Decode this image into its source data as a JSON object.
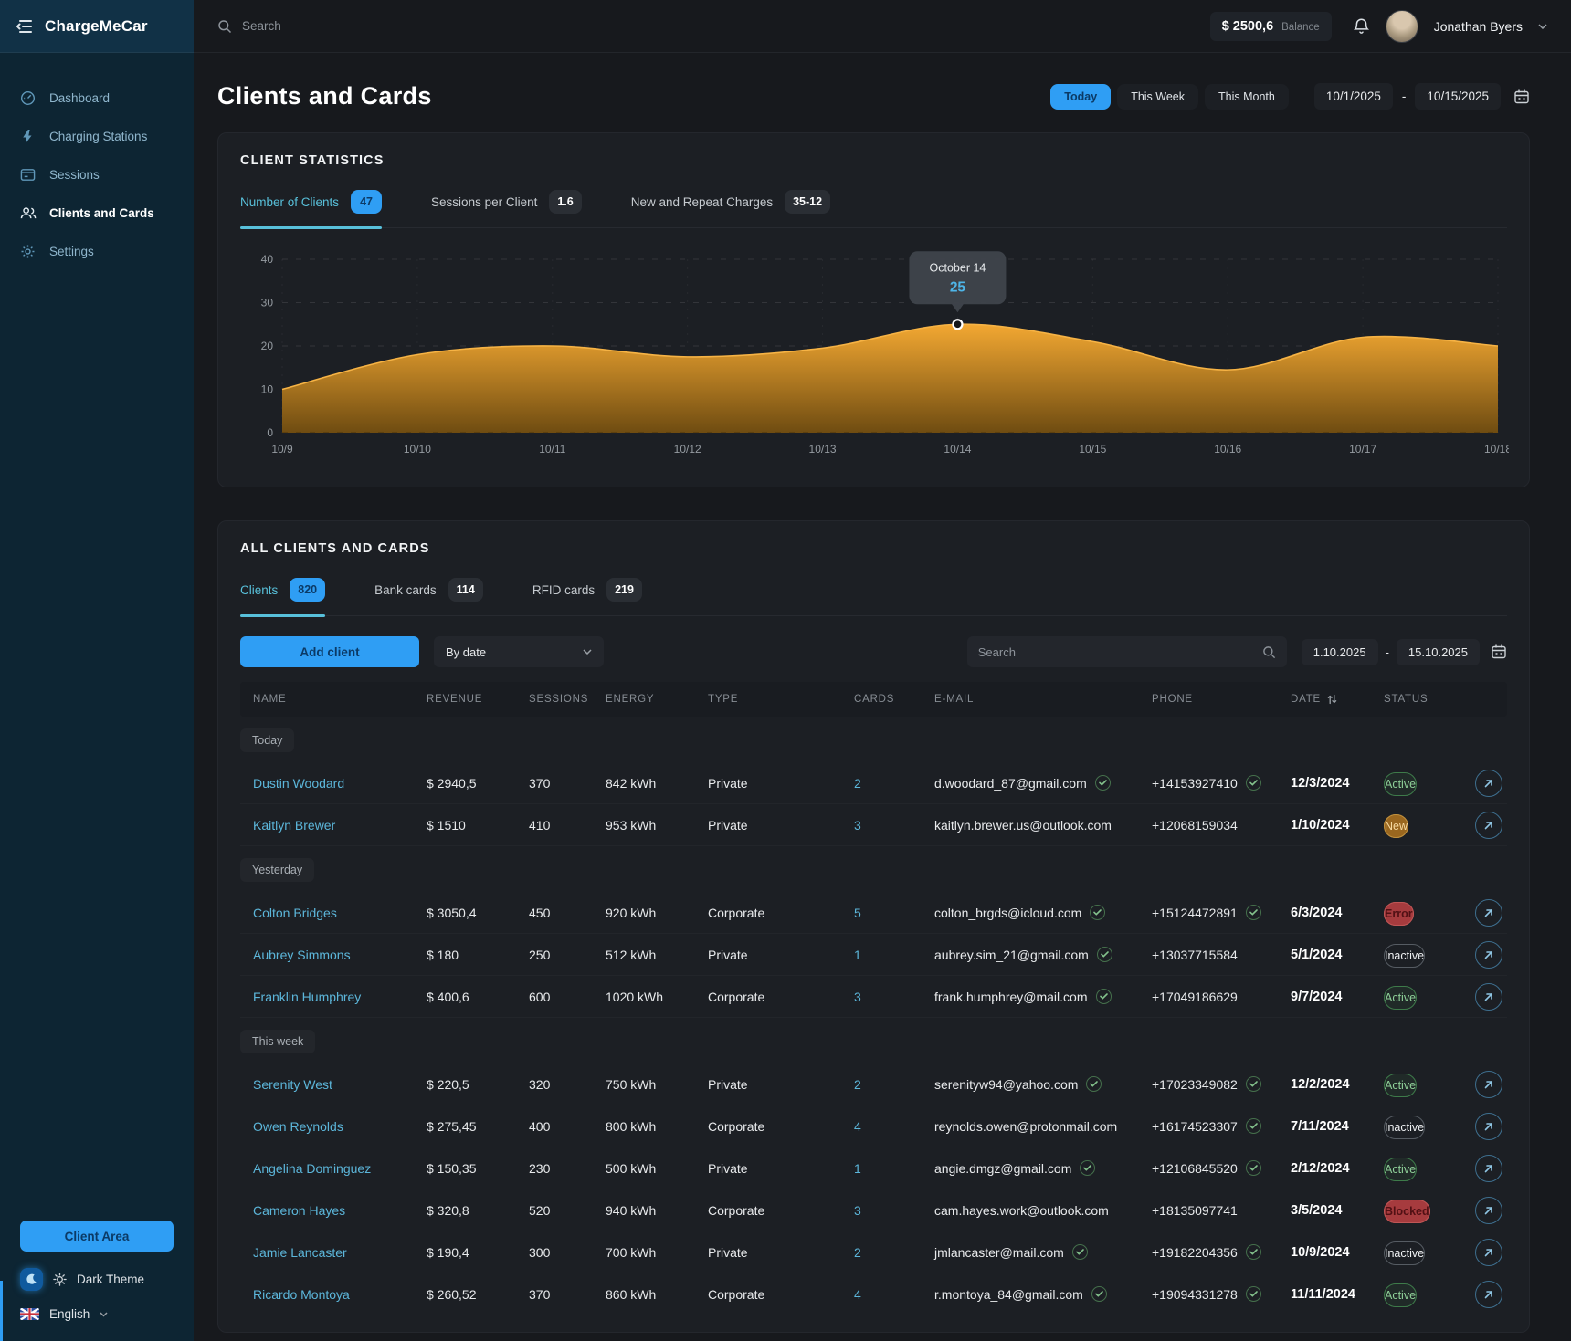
{
  "app": {
    "name": "ChargeMeCar"
  },
  "topbar": {
    "search_placeholder": "Search",
    "balance_value": "$ 2500,6",
    "balance_label": "Balance",
    "user_name": "Jonathan Byers"
  },
  "sidebar": {
    "items": [
      {
        "label": "Dashboard",
        "icon": "dashboard",
        "active": false
      },
      {
        "label": "Charging Stations",
        "icon": "charging",
        "active": false
      },
      {
        "label": "Sessions",
        "icon": "sessions",
        "active": false
      },
      {
        "label": "Clients and Cards",
        "icon": "clients",
        "active": true
      },
      {
        "label": "Settings",
        "icon": "settings",
        "active": false
      }
    ],
    "client_area_label": "Client Area",
    "theme_label": "Dark Theme",
    "language": "English"
  },
  "page": {
    "title": "Clients and Cards",
    "filters": [
      {
        "label": "Today",
        "active": true
      },
      {
        "label": "This Week",
        "active": false
      },
      {
        "label": "This Month",
        "active": false
      }
    ],
    "date_from": "10/1/2025",
    "date_separator": "-",
    "date_to": "10/15/2025"
  },
  "stats": {
    "title": "CLIENT STATISTICS",
    "tabs": [
      {
        "label": "Number of Clients",
        "badge": "47",
        "active": true
      },
      {
        "label": "Sessions per Client",
        "badge": "1.6",
        "active": false
      },
      {
        "label": "New and Repeat Charges",
        "badge": "35-12",
        "active": false
      }
    ]
  },
  "chart_data": {
    "type": "area",
    "title": "Number of Clients",
    "x": [
      "10/9",
      "10/10",
      "10/11",
      "10/12",
      "10/13",
      "10/14",
      "10/15",
      "10/16",
      "10/17",
      "10/18"
    ],
    "values": [
      10,
      18,
      20,
      17.5,
      19.5,
      25,
      21,
      14.5,
      22,
      20
    ],
    "ylim": [
      0,
      40
    ],
    "yticks": [
      0,
      10,
      20,
      30,
      40
    ],
    "grid": "dashed",
    "fill_color": "#e89c27",
    "tooltip": {
      "index": 5,
      "label": "October 14",
      "value": "25"
    }
  },
  "clients": {
    "title": "ALL CLIENTS AND CARDS",
    "tabs": [
      {
        "label": "Clients",
        "badge": "820",
        "active": true
      },
      {
        "label": "Bank cards",
        "badge": "114",
        "active": false
      },
      {
        "label": "RFID cards",
        "badge": "219",
        "active": false
      }
    ],
    "add_button": "Add client",
    "sort_label": "By date",
    "search_placeholder": "Search",
    "date_from": "1.10.2025",
    "date_separator": "-",
    "date_to": "15.10.2025",
    "columns": [
      "NAME",
      "REVENUE",
      "SESSIONS",
      "ENERGY",
      "TYPE",
      "CARDS",
      "E-MAIL",
      "PHONE",
      "DATE",
      "STATUS"
    ],
    "groups": [
      {
        "label": "Today",
        "rows": [
          {
            "name": "Dustin Woodard",
            "revenue": "$ 2940,5",
            "sessions": "370",
            "energy": "842 kWh",
            "type": "Private",
            "cards": "2",
            "email": "d.woodard_87@gmail.com",
            "email_verified": true,
            "phone": "+14153927410",
            "phone_verified": true,
            "date": "12/3/2024",
            "status": "Active",
            "status_type": "active"
          },
          {
            "name": "Kaitlyn Brewer",
            "revenue": "$ 1510",
            "sessions": "410",
            "energy": "953 kWh",
            "type": "Private",
            "cards": "3",
            "email": "kaitlyn.brewer.us@outlook.com",
            "email_verified": false,
            "phone": "+12068159034",
            "phone_verified": false,
            "date": "1/10/2024",
            "status": "New",
            "status_type": "new"
          }
        ]
      },
      {
        "label": "Yesterday",
        "rows": [
          {
            "name": "Colton Bridges",
            "revenue": "$ 3050,4",
            "sessions": "450",
            "energy": "920 kWh",
            "type": "Corporate",
            "cards": "5",
            "email": "colton_brgds@icloud.com",
            "email_verified": true,
            "phone": "+15124472891",
            "phone_verified": true,
            "date": "6/3/2024",
            "status": "Error",
            "status_type": "error"
          },
          {
            "name": "Aubrey Simmons",
            "revenue": "$ 180",
            "sessions": "250",
            "energy": "512 kWh",
            "type": "Private",
            "cards": "1",
            "email": "aubrey.sim_21@gmail.com",
            "email_verified": true,
            "phone": "+13037715584",
            "phone_verified": false,
            "date": "5/1/2024",
            "status": "Inactive",
            "status_type": "inactive"
          },
          {
            "name": "Franklin Humphrey",
            "revenue": "$ 400,6",
            "sessions": "600",
            "energy": "1020 kWh",
            "type": "Corporate",
            "cards": "3",
            "email": "frank.humphrey@mail.com",
            "email_verified": true,
            "phone": "+17049186629",
            "phone_verified": false,
            "date": "9/7/2024",
            "status": "Active",
            "status_type": "active"
          }
        ]
      },
      {
        "label": "This week",
        "rows": [
          {
            "name": "Serenity West",
            "revenue": "$ 220,5",
            "sessions": "320",
            "energy": "750 kWh",
            "type": "Private",
            "cards": "2",
            "email": "serenityw94@yahoo.com",
            "email_verified": true,
            "phone": "+17023349082",
            "phone_verified": true,
            "date": "12/2/2024",
            "status": "Active",
            "status_type": "active"
          },
          {
            "name": "Owen Reynolds",
            "revenue": "$ 275,45",
            "sessions": "400",
            "energy": "800 kWh",
            "type": "Corporate",
            "cards": "4",
            "email": "reynolds.owen@protonmail.com",
            "email_verified": false,
            "phone": "+16174523307",
            "phone_verified": true,
            "date": "7/11/2024",
            "status": "Inactive",
            "status_type": "inactive"
          },
          {
            "name": "Angelina Dominguez",
            "revenue": "$ 150,35",
            "sessions": "230",
            "energy": "500 kWh",
            "type": "Private",
            "cards": "1",
            "email": "angie.dmgz@gmail.com",
            "email_verified": true,
            "phone": "+12106845520",
            "phone_verified": true,
            "date": "2/12/2024",
            "status": "Active",
            "status_type": "active"
          },
          {
            "name": "Cameron Hayes",
            "revenue": "$ 320,8",
            "sessions": "520",
            "energy": "940 kWh",
            "type": "Corporate",
            "cards": "3",
            "email": "cam.hayes.work@outlook.com",
            "email_verified": false,
            "phone": "+18135097741",
            "phone_verified": false,
            "date": "3/5/2024",
            "status": "Blocked",
            "status_type": "blocked"
          },
          {
            "name": "Jamie Lancaster",
            "revenue": "$ 190,4",
            "sessions": "300",
            "energy": "700 kWh",
            "type": "Private",
            "cards": "2",
            "email": "jmlancaster@mail.com",
            "email_verified": true,
            "phone": "+19182204356",
            "phone_verified": true,
            "date": "10/9/2024",
            "status": "Inactive",
            "status_type": "inactive"
          },
          {
            "name": "Ricardo Montoya",
            "revenue": "$ 260,52",
            "sessions": "370",
            "energy": "860 kWh",
            "type": "Corporate",
            "cards": "4",
            "email": "r.montoya_84@gmail.com",
            "email_verified": true,
            "phone": "+19094331278",
            "phone_verified": true,
            "date": "11/11/2024",
            "status": "Active",
            "status_type": "active"
          }
        ]
      }
    ]
  },
  "colors": {
    "accent_blue": "#2f9ef4",
    "tab_cyan": "#58c0da",
    "link_cyan": "#5cb6da",
    "chart_orange": "#e89c27",
    "status_active": "#8fd099",
    "status_new": "#c0913f",
    "status_error": "#a63b3e",
    "status_inactive": "#565c63"
  }
}
